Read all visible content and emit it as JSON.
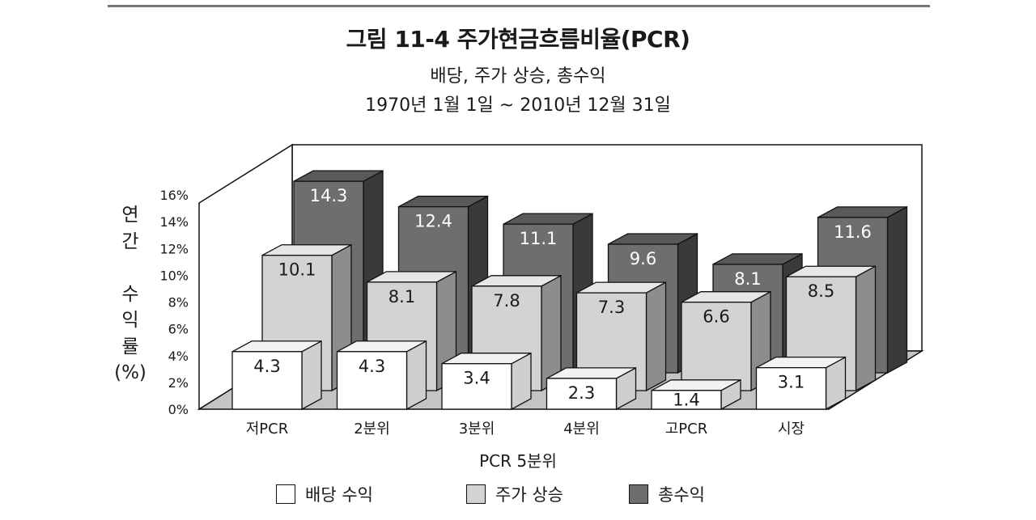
{
  "title": "그림 11-4  주가현금흐름비율(PCR)",
  "subtitle1": "배당, 주가 상승, 총수익",
  "subtitle2": "1970년 1월 1일 ~ 2010년 12월 31일",
  "chart_data": {
    "type": "bar",
    "title": "그림 11-4  주가현금흐름비율(PCR)",
    "xlabel": "PCR 5분위",
    "ylabel": "연간 수익률 (%)",
    "ylabel_lines": [
      "연",
      "간",
      "",
      "수",
      "익",
      "률",
      "(%)"
    ],
    "categories": [
      "저PCR",
      "2분위",
      "3분위",
      "4분위",
      "고PCR",
      "시장"
    ],
    "y_ticks": [
      "0%",
      "2%",
      "4%",
      "6%",
      "8%",
      "10%",
      "12%",
      "14%",
      "16%"
    ],
    "ylim": [
      0,
      16
    ],
    "grid": false,
    "legend_position": "bottom",
    "series": [
      {
        "name": "배당 수익",
        "values": [
          4.3,
          4.3,
          3.4,
          2.3,
          1.4,
          3.1
        ],
        "labels": [
          "4.3",
          "4.3",
          "3.4",
          "2.3",
          "1.4",
          "3.1"
        ]
      },
      {
        "name": "주가 상승",
        "values": [
          10.1,
          8.1,
          7.8,
          7.3,
          6.6,
          8.5
        ],
        "labels": [
          "10.1",
          "8.1",
          "7.8",
          "7.3",
          "6.6",
          "8.5"
        ]
      },
      {
        "name": "총수익",
        "values": [
          14.3,
          12.4,
          11.1,
          9.6,
          8.1,
          11.6
        ],
        "labels": [
          "14.3",
          "12.4",
          "11.1",
          "9.6",
          "8.1",
          "11.6"
        ]
      }
    ]
  },
  "colors": {
    "dividend": "#ffffff",
    "price": "#d3d3d3",
    "total": "#6e6e6e",
    "floor": "#c4c4c4"
  }
}
